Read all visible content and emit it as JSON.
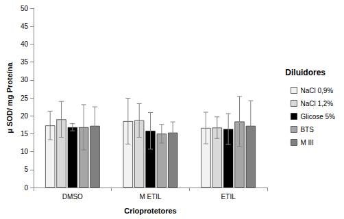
{
  "chart_data": {
    "type": "bar",
    "x_label": "Crioprotetores",
    "y_label": "μ SOD/ mg Proteína",
    "legend_title": "Diluidores",
    "categories": [
      "DMSO",
      "M ETIL",
      "ETIL"
    ],
    "series": [
      {
        "name": "NaCl 0,9%",
        "color": "#f2f2f2",
        "values": [
          17.3,
          18.5,
          16.6
        ],
        "errors": [
          4.0,
          6.4,
          4.4
        ]
      },
      {
        "name": "NaCl 1,2%",
        "color": "#d9d9d9",
        "values": [
          19.0,
          18.7,
          16.7
        ],
        "errors": [
          5.0,
          4.7,
          3.0
        ]
      },
      {
        "name": "Glicose 5%",
        "color": "#000000",
        "values": [
          16.8,
          15.8,
          16.3
        ],
        "errors": [
          1.0,
          5.1,
          4.3
        ]
      },
      {
        "name": "BTS",
        "color": "#a6a6a6",
        "values": [
          16.8,
          15.0,
          18.4
        ],
        "errors": [
          6.3,
          2.6,
          7.0
        ]
      },
      {
        "name": "M III",
        "color": "#808080",
        "values": [
          17.2,
          15.3,
          17.2
        ],
        "errors": [
          5.3,
          3.0,
          7.0
        ]
      }
    ],
    "ylim": [
      0,
      50
    ],
    "yticks": [
      0,
      5,
      10,
      15,
      20,
      25,
      30,
      35,
      40,
      45,
      50
    ],
    "grid": false,
    "legend": "right"
  }
}
